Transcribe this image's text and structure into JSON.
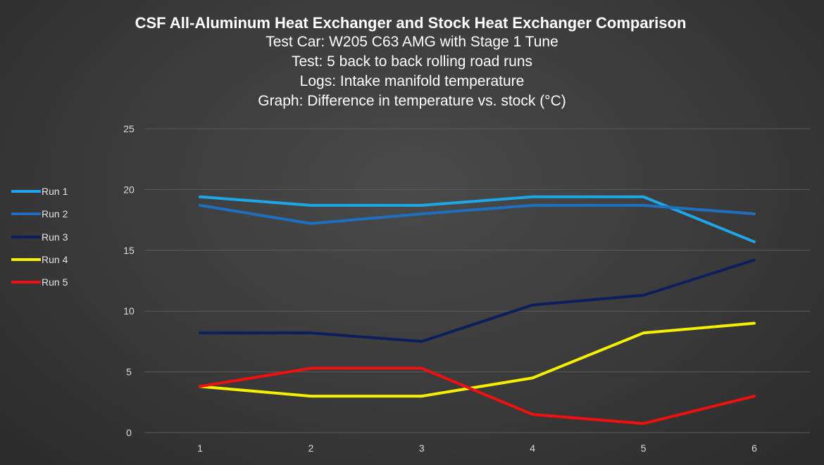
{
  "chart_data": {
    "type": "line",
    "title": "CSF All-Aluminum Heat Exchanger and Stock Heat Exchanger Comparison",
    "subtitles": [
      "Test Car: W205 C63 AMG with Stage 1 Tune",
      "Test: 5 back to back rolling road runs",
      "Logs: Intake manifold temperature",
      "Graph: Difference in temperature vs. stock (°C)"
    ],
    "x": [
      1,
      2,
      3,
      4,
      5,
      6
    ],
    "x_tick_labels": [
      "1",
      "2",
      "3",
      "4",
      "5",
      "6"
    ],
    "y_tick_labels": [
      "0",
      "5",
      "10",
      "15",
      "20",
      "25"
    ],
    "ylim": [
      0,
      25
    ],
    "grid": "horizontal",
    "legend_position": "left",
    "series": [
      {
        "name": "Run 1",
        "color": "#1ea7e8",
        "values": [
          19.4,
          18.7,
          18.7,
          19.4,
          19.4,
          15.7
        ]
      },
      {
        "name": "Run 2",
        "color": "#1f6fbf",
        "values": [
          18.7,
          17.2,
          18.0,
          18.7,
          18.7,
          18.0
        ]
      },
      {
        "name": "Run 3",
        "color": "#0c1f5c",
        "values": [
          8.2,
          8.2,
          7.5,
          10.5,
          11.3,
          14.2
        ]
      },
      {
        "name": "Run 4",
        "color": "#f5f000",
        "values": [
          3.8,
          3.0,
          3.0,
          4.5,
          8.2,
          9.0
        ]
      },
      {
        "name": "Run 5",
        "color": "#f01010",
        "values": [
          3.8,
          5.3,
          5.3,
          1.5,
          0.75,
          3.0
        ]
      }
    ]
  }
}
